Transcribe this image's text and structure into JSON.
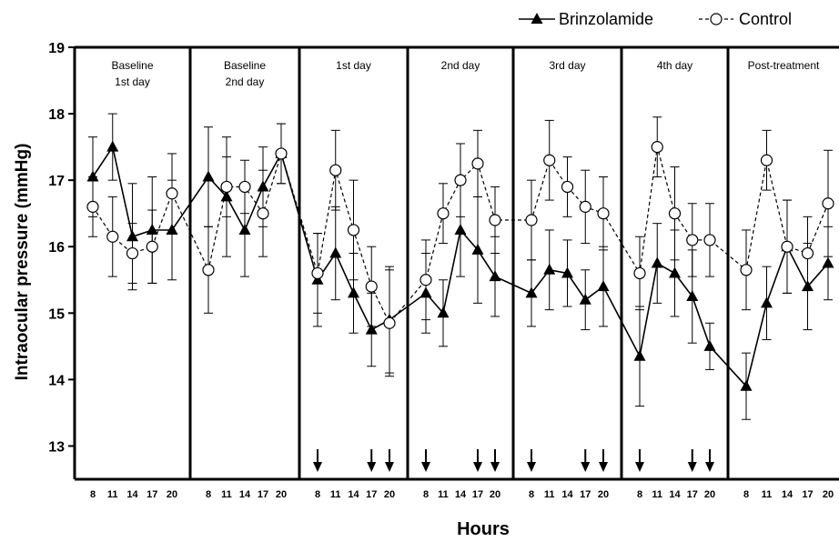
{
  "chart_data": {
    "type": "line",
    "ylabel": "Intraocular pressure (mmHg)",
    "xlabel": "Hours",
    "ylim": [
      12.5,
      19
    ],
    "yticks": [
      13,
      14,
      15,
      16,
      17,
      18,
      19
    ],
    "grid": false,
    "legend_placement": "top-right",
    "hours": [
      8,
      11,
      14,
      17,
      20
    ],
    "panels": [
      {
        "label": [
          "Baseline",
          "1st day"
        ],
        "doses": []
      },
      {
        "label": [
          "Baseline",
          "2nd day"
        ],
        "doses": []
      },
      {
        "label": [
          "1st day"
        ],
        "doses": [
          8,
          17,
          20
        ]
      },
      {
        "label": [
          "2nd day"
        ],
        "doses": [
          8,
          17,
          20
        ]
      },
      {
        "label": [
          "3rd day"
        ],
        "doses": [
          8,
          17,
          20
        ]
      },
      {
        "label": [
          "4th day"
        ],
        "doses": [
          8,
          17,
          20
        ]
      },
      {
        "label": [
          "Post-treatment"
        ],
        "doses": []
      }
    ],
    "series": [
      {
        "name": "Brinzolamide",
        "marker": "triangle",
        "line": "solid",
        "color": "#000000",
        "values": [
          [
            17.05,
            17.5,
            16.15,
            16.25,
            16.25
          ],
          [
            17.05,
            16.75,
            16.25,
            16.9,
            17.4
          ],
          [
            15.5,
            15.9,
            15.3,
            14.75,
            14.9
          ],
          [
            15.3,
            15.0,
            16.25,
            15.95,
            15.55
          ],
          [
            15.3,
            15.65,
            15.6,
            15.2,
            15.4
          ],
          [
            14.35,
            15.75,
            15.6,
            15.25,
            14.5
          ],
          [
            13.9,
            15.15,
            16.0,
            15.4,
            15.75
          ]
        ],
        "errors": [
          [
            0.6,
            0.5,
            0.8,
            0.8,
            0.75
          ],
          [
            0.75,
            0.9,
            0.7,
            0.6,
            0.45
          ],
          [
            0.7,
            0.7,
            0.6,
            0.55,
            0.8
          ],
          [
            0.6,
            0.5,
            0.7,
            0.8,
            0.6
          ],
          [
            0.5,
            0.6,
            0.5,
            0.45,
            0.6
          ],
          [
            0.75,
            0.6,
            0.65,
            0.7,
            0.35
          ],
          [
            0.5,
            0.55,
            0.7,
            0.65,
            0.55
          ]
        ]
      },
      {
        "name": "Control",
        "marker": "circle",
        "line": "dashed",
        "color": "#000000",
        "values": [
          [
            16.6,
            16.15,
            15.9,
            16.0,
            16.8
          ],
          [
            15.65,
            16.9,
            16.9,
            16.5,
            17.4
          ],
          [
            15.6,
            17.15,
            16.25,
            15.4,
            14.85
          ],
          [
            15.5,
            16.5,
            17.0,
            17.25,
            16.4
          ],
          [
            16.4,
            17.3,
            16.9,
            16.6,
            16.5
          ],
          [
            15.6,
            17.5,
            16.5,
            16.1,
            16.1
          ],
          [
            15.65,
            17.3,
            16.0,
            15.9,
            16.65
          ]
        ],
        "errors": [
          [
            0.45,
            0.6,
            0.45,
            0.55,
            0.6
          ],
          [
            0.65,
            0.45,
            0.4,
            0.65,
            0.45
          ],
          [
            0.6,
            0.6,
            0.75,
            0.6,
            0.8
          ],
          [
            0.6,
            0.45,
            0.55,
            0.5,
            0.5
          ],
          [
            0.6,
            0.6,
            0.45,
            0.55,
            0.55
          ],
          [
            0.55,
            0.45,
            0.7,
            0.55,
            0.55
          ],
          [
            0.6,
            0.45,
            0.7,
            0.55,
            0.8
          ]
        ]
      }
    ]
  }
}
